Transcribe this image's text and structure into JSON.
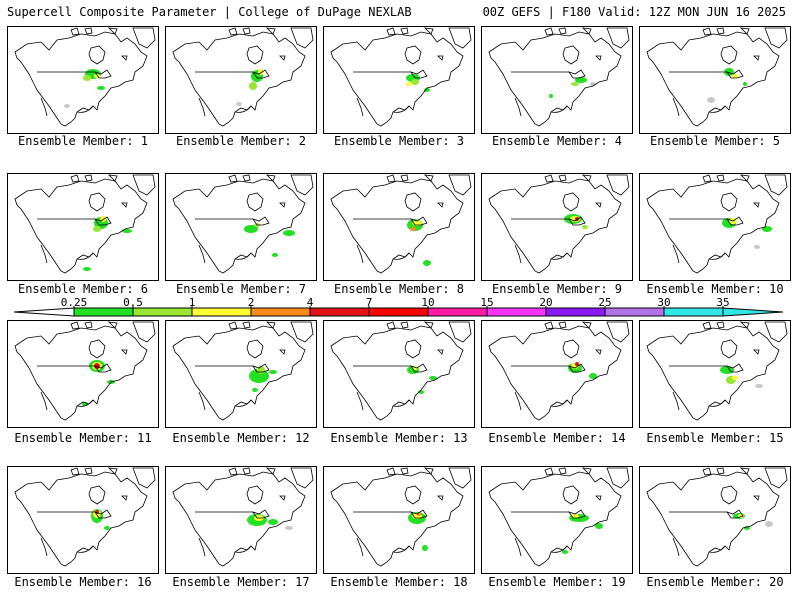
{
  "header": {
    "left": "Supercell Composite Parameter | College of DuPage NEXLAB",
    "right": "00Z GEFS | F180 Valid: 12Z MON JUN 16 2025"
  },
  "caption_prefix": "Ensemble Member: ",
  "members": [
    {
      "id": "1",
      "label": "Ensemble Member: 1"
    },
    {
      "id": "2",
      "label": "Ensemble Member: 2"
    },
    {
      "id": "3",
      "label": "Ensemble Member: 3"
    },
    {
      "id": "4",
      "label": "Ensemble Member: 4"
    },
    {
      "id": "5",
      "label": "Ensemble Member: 5"
    },
    {
      "id": "6",
      "label": "Ensemble Member: 6"
    },
    {
      "id": "7",
      "label": "Ensemble Member: 7"
    },
    {
      "id": "8",
      "label": "Ensemble Member: 8"
    },
    {
      "id": "9",
      "label": "Ensemble Member: 9"
    },
    {
      "id": "10",
      "label": "Ensemble Member: 10"
    },
    {
      "id": "11",
      "label": "Ensemble Member: 11"
    },
    {
      "id": "12",
      "label": "Ensemble Member: 12"
    },
    {
      "id": "13",
      "label": "Ensemble Member: 13"
    },
    {
      "id": "14",
      "label": "Ensemble Member: 14"
    },
    {
      "id": "15",
      "label": "Ensemble Member: 15"
    },
    {
      "id": "16",
      "label": "Ensemble Member: 16"
    },
    {
      "id": "17",
      "label": "Ensemble Member: 17"
    },
    {
      "id": "18",
      "label": "Ensemble Member: 18"
    },
    {
      "id": "19",
      "label": "Ensemble Member: 19"
    },
    {
      "id": "20",
      "label": "Ensemble Member: 20"
    }
  ],
  "colorbar": {
    "ticks": [
      "0.25",
      "0.5",
      "1",
      "2",
      "4",
      "7",
      "10",
      "15",
      "20",
      "25",
      "30",
      "35"
    ],
    "colors": [
      "#c8c8c8",
      "#22e022",
      "#99e633",
      "#ffff33",
      "#ff8c1a",
      "#e01414",
      "#ff0000",
      "#ff1aa3",
      "#ff33ff",
      "#8c1aff",
      "#b373e6",
      "#33e6e6"
    ]
  }
}
